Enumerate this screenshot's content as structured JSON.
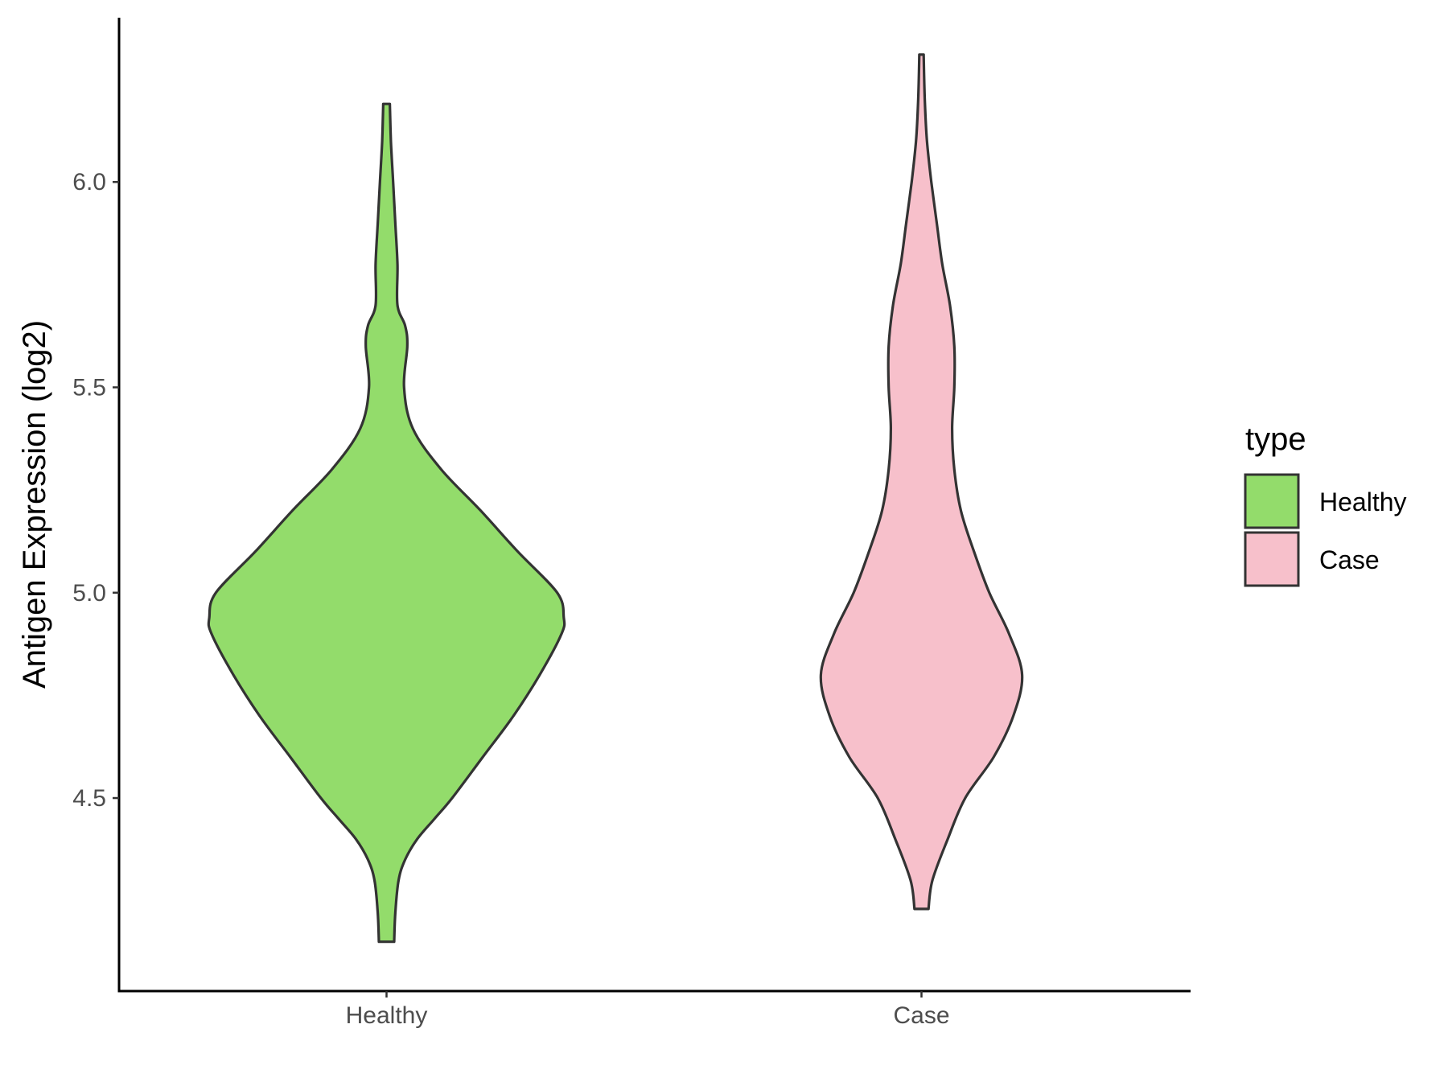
{
  "chart_data": {
    "type": "violin",
    "title": "",
    "xlabel": "",
    "ylabel": "Antigen Expression (log2)",
    "categories": [
      "Healthy",
      "Case"
    ],
    "ylim": [
      4.03,
      6.4
    ],
    "yticks": [
      4.5,
      5.0,
      5.5,
      6.0
    ],
    "ytick_labels": [
      "4.5",
      "5.0",
      "5.5",
      "6.0"
    ],
    "grid": false,
    "legend": {
      "title": "type",
      "position": "right",
      "entries": [
        "Healthy",
        "Case"
      ]
    },
    "series": [
      {
        "name": "Healthy",
        "color": "#93dc6b",
        "min": 4.15,
        "max": 6.19,
        "density": [
          [
            4.15,
            0.035
          ],
          [
            4.22,
            0.04
          ],
          [
            4.3,
            0.055
          ],
          [
            4.35,
            0.085
          ],
          [
            4.4,
            0.14
          ],
          [
            4.45,
            0.22
          ],
          [
            4.5,
            0.3
          ],
          [
            4.6,
            0.44
          ],
          [
            4.7,
            0.58
          ],
          [
            4.8,
            0.7
          ],
          [
            4.9,
            0.8
          ],
          [
            4.94,
            0.81
          ],
          [
            5.0,
            0.78
          ],
          [
            5.1,
            0.6
          ],
          [
            5.2,
            0.43
          ],
          [
            5.3,
            0.25
          ],
          [
            5.4,
            0.12
          ],
          [
            5.5,
            0.08
          ],
          [
            5.6,
            0.095
          ],
          [
            5.65,
            0.085
          ],
          [
            5.7,
            0.05
          ],
          [
            5.8,
            0.05
          ],
          [
            5.9,
            0.04
          ],
          [
            6.0,
            0.03
          ],
          [
            6.1,
            0.02
          ],
          [
            6.19,
            0.015
          ]
        ]
      },
      {
        "name": "Case",
        "color": "#f7c0cb",
        "min": 4.23,
        "max": 6.31,
        "density": [
          [
            4.23,
            0.032
          ],
          [
            4.3,
            0.05
          ],
          [
            4.4,
            0.12
          ],
          [
            4.5,
            0.2
          ],
          [
            4.6,
            0.33
          ],
          [
            4.7,
            0.42
          ],
          [
            4.8,
            0.46
          ],
          [
            4.9,
            0.4
          ],
          [
            5.0,
            0.31
          ],
          [
            5.1,
            0.24
          ],
          [
            5.2,
            0.18
          ],
          [
            5.3,
            0.15
          ],
          [
            5.4,
            0.14
          ],
          [
            5.5,
            0.15
          ],
          [
            5.6,
            0.15
          ],
          [
            5.7,
            0.13
          ],
          [
            5.8,
            0.095
          ],
          [
            5.9,
            0.07
          ],
          [
            6.0,
            0.045
          ],
          [
            6.1,
            0.025
          ],
          [
            6.2,
            0.015
          ],
          [
            6.31,
            0.01
          ]
        ]
      }
    ]
  }
}
